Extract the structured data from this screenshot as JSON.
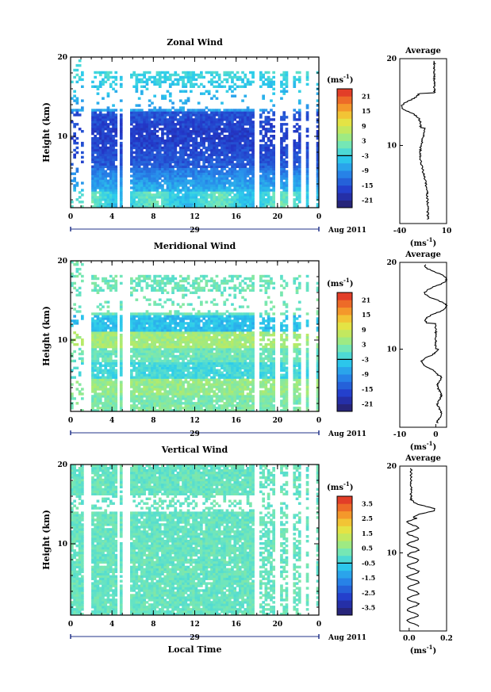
{
  "chart_data": [
    {
      "type": "heatmap",
      "title": "Zonal Wind",
      "ylabel": "Height (km)",
      "ylim": [
        1,
        20
      ],
      "yticks": [
        "10",
        "20"
      ],
      "xticks": [
        "0",
        "4",
        "8",
        "12",
        "16",
        "20",
        "0"
      ],
      "date_label": "29",
      "month_label": "Aug 2011",
      "colorbar": {
        "unit": "(ms",
        "exp": "-1",
        "ticks": [
          "21",
          "15",
          "9",
          "3",
          "-3",
          "-9",
          "-15",
          "-21"
        ],
        "range": [
          -24,
          24
        ]
      },
      "profile": {
        "title": "Average",
        "xlim": [
          -40,
          10
        ],
        "xticks": [
          "-40",
          "10"
        ],
        "xlabel": "(ms",
        "yticks": [
          "10",
          "20"
        ]
      }
    },
    {
      "type": "heatmap",
      "title": "Meridional Wind",
      "ylabel": "Height (km)",
      "ylim": [
        1,
        20
      ],
      "yticks": [
        "10",
        "20"
      ],
      "xticks": [
        "0",
        "4",
        "8",
        "12",
        "16",
        "20",
        "0"
      ],
      "date_label": "29",
      "month_label": "Aug 2011",
      "colorbar": {
        "unit": "(ms",
        "exp": "-1",
        "ticks": [
          "21",
          "15",
          "9",
          "3",
          "-3",
          "-9",
          "-15",
          "-21"
        ],
        "range": [
          -24,
          24
        ]
      },
      "profile": {
        "title": "Average",
        "xlim": [
          -10,
          3
        ],
        "xticks": [
          "-10",
          "0"
        ],
        "xlabel": "(ms",
        "yticks": [
          "10",
          "20"
        ]
      }
    },
    {
      "type": "heatmap",
      "title": "Vertical Wind",
      "ylabel": "Height (km)",
      "ylim": [
        1,
        20
      ],
      "yticks": [
        "10",
        "20"
      ],
      "xticks": [
        "0",
        "4",
        "8",
        "12",
        "16",
        "20",
        "0"
      ],
      "date_label": "29",
      "month_label": "Aug 2011",
      "xlabel": "Local Time",
      "colorbar": {
        "unit": "(ms",
        "exp": "-1",
        "ticks": [
          "3.5",
          "2.5",
          "1.5",
          "0.5",
          "-0.5",
          "-1.5",
          "-2.5",
          "-3.5"
        ],
        "range": [
          -4,
          4
        ]
      },
      "profile": {
        "title": "Average",
        "xlim": [
          -0.05,
          0.2
        ],
        "xticks": [
          "0.0",
          "0.2"
        ],
        "xlabel": "(ms",
        "yticks": [
          "10",
          "20"
        ]
      }
    }
  ]
}
